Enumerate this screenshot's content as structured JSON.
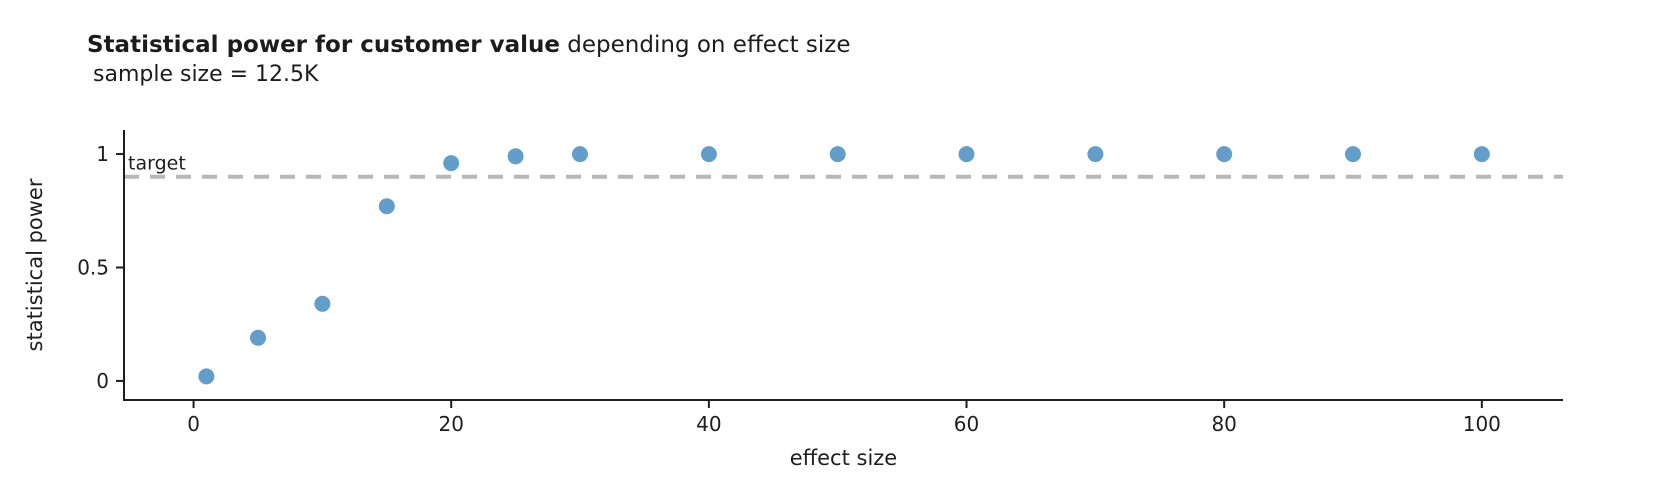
{
  "header": {
    "title_bold": "Statistical power for customer value",
    "title_rest": " depending on effect size",
    "subtitle": "sample size = 12.5K"
  },
  "chart_data": {
    "type": "scatter",
    "title": "Statistical power for customer value depending on effect size",
    "subtitle": "sample size = 12.5K",
    "xlabel": "effect size",
    "ylabel": "statistical power",
    "x": [
      1,
      5,
      10,
      15,
      20,
      25,
      30,
      40,
      50,
      60,
      70,
      80,
      90,
      100
    ],
    "y": [
      0.02,
      0.19,
      0.34,
      0.77,
      0.96,
      0.99,
      1,
      1,
      1,
      1,
      1,
      1,
      1,
      1
    ],
    "xticks": [
      0,
      20,
      40,
      60,
      80,
      100
    ],
    "yticks": [
      0,
      0.5,
      1
    ],
    "xlim": [
      -5.4,
      106.3
    ],
    "ylim": [
      -0.084,
      1.106
    ],
    "grid": false,
    "legend": null,
    "target_line": {
      "value": 0.9,
      "label": "target",
      "style": "dashed"
    },
    "colors": {
      "point": "#639dca",
      "target_dash": "#b8b8b8",
      "axis": "#1e1e1e",
      "text": "#1e1e1e"
    }
  }
}
